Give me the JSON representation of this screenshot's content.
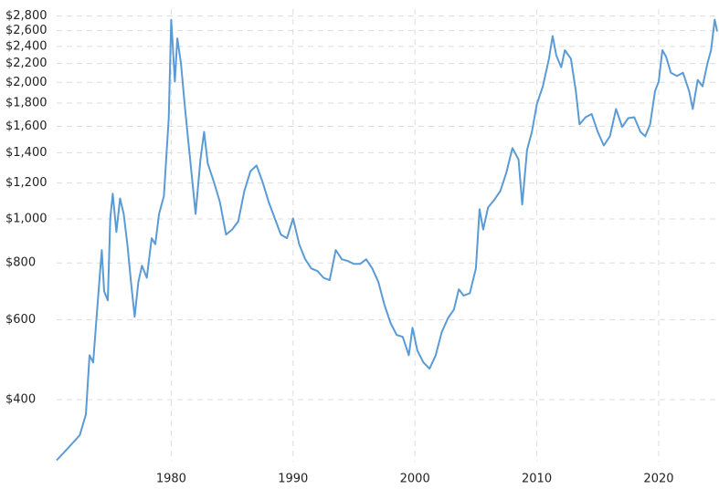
{
  "chart_data": {
    "type": "line",
    "log_scale": true,
    "grid": true,
    "xlim": [
      1970.6,
      2024.8
    ],
    "ylim": [
      292,
      2900
    ],
    "xticks": [
      1980,
      1990,
      2000,
      2010,
      2020
    ],
    "yticks": [
      {
        "value": 400,
        "label": "$400"
      },
      {
        "value": 600,
        "label": "$600"
      },
      {
        "value": 800,
        "label": "$800"
      },
      {
        "value": 1000,
        "label": "$1,000"
      },
      {
        "value": 1200,
        "label": "$1,200"
      },
      {
        "value": 1400,
        "label": "$1,400"
      },
      {
        "value": 1600,
        "label": "$1,600"
      },
      {
        "value": 1800,
        "label": "$1,800"
      },
      {
        "value": 2000,
        "label": "$2,000"
      },
      {
        "value": 2200,
        "label": "$2,200"
      },
      {
        "value": 2400,
        "label": "$2,400"
      },
      {
        "value": 2600,
        "label": "$2,600"
      },
      {
        "value": 2800,
        "label": "$2,800"
      }
    ],
    "color": "#5b9bd5",
    "x": [
      1970.6,
      1971.5,
      1972.5,
      1973.0,
      1973.3,
      1973.6,
      1973.9,
      1974.3,
      1974.5,
      1974.8,
      1975.0,
      1975.2,
      1975.5,
      1975.8,
      1976.1,
      1976.4,
      1976.7,
      1977.0,
      1977.3,
      1977.6,
      1978.0,
      1978.4,
      1978.7,
      1979.0,
      1979.4,
      1979.8,
      1980.0,
      1980.3,
      1980.5,
      1980.8,
      1981.1,
      1981.4,
      1981.7,
      1982.0,
      1982.4,
      1982.7,
      1983.0,
      1983.5,
      1984.0,
      1984.5,
      1985.0,
      1985.5,
      1986.0,
      1986.5,
      1987.0,
      1987.5,
      1988.0,
      1988.5,
      1989.0,
      1989.5,
      1990.0,
      1990.5,
      1991.0,
      1991.5,
      1992.0,
      1992.5,
      1993.0,
      1993.5,
      1994.0,
      1994.5,
      1995.0,
      1995.5,
      1996.0,
      1996.5,
      1997.0,
      1997.5,
      1998.0,
      1998.5,
      1999.0,
      1999.5,
      1999.8,
      2000.2,
      2000.7,
      2001.2,
      2001.7,
      2002.2,
      2002.7,
      2003.2,
      2003.6,
      2004.0,
      2004.5,
      2005.0,
      2005.3,
      2005.6,
      2006.0,
      2006.5,
      2007.0,
      2007.5,
      2008.0,
      2008.5,
      2008.8,
      2009.2,
      2009.6,
      2010.0,
      2010.5,
      2011.0,
      2011.3,
      2011.6,
      2012.0,
      2012.3,
      2012.8,
      2013.2,
      2013.5,
      2014.0,
      2014.5,
      2015.0,
      2015.5,
      2016.0,
      2016.5,
      2017.0,
      2017.5,
      2018.0,
      2018.5,
      2018.9,
      2019.3,
      2019.7,
      2020.0,
      2020.3,
      2020.6,
      2021.0,
      2021.5,
      2022.0,
      2022.5,
      2022.8,
      2023.2,
      2023.6,
      2024.0,
      2024.3,
      2024.6,
      2024.8
    ],
    "values": [
      294,
      312,
      334,
      371,
      501,
      483,
      618,
      854,
      693,
      662,
      1003,
      1137,
      936,
      1110,
      1026,
      880,
      726,
      609,
      726,
      789,
      742,
      907,
      880,
      1026,
      1124,
      1668,
      2748,
      2008,
      2500,
      2200,
      1790,
      1484,
      1236,
      1026,
      1352,
      1556,
      1325,
      1207,
      1090,
      924,
      948,
      988,
      1152,
      1274,
      1312,
      1207,
      1090,
      1003,
      924,
      907,
      1003,
      880,
      815,
      778,
      768,
      742,
      733,
      854,
      815,
      808,
      796,
      796,
      815,
      778,
      726,
      647,
      590,
      555,
      550,
      501,
      576,
      513,
      483,
      468,
      501,
      563,
      604,
      632,
      700,
      678,
      686,
      778,
      1051,
      948,
      1060,
      1101,
      1152,
      1264,
      1433,
      1352,
      1076,
      1419,
      1556,
      1790,
      1960,
      2256,
      2530,
      2292,
      2160,
      2355,
      2256,
      1914,
      1616,
      1676,
      1703,
      1556,
      1452,
      1521,
      1747,
      1595,
      1668,
      1676,
      1556,
      1521,
      1616,
      1914,
      2008,
      2355,
      2280,
      2100,
      2066,
      2100,
      1914,
      1747,
      2025,
      1960,
      2200,
      2355,
      2748,
      2590
    ]
  }
}
